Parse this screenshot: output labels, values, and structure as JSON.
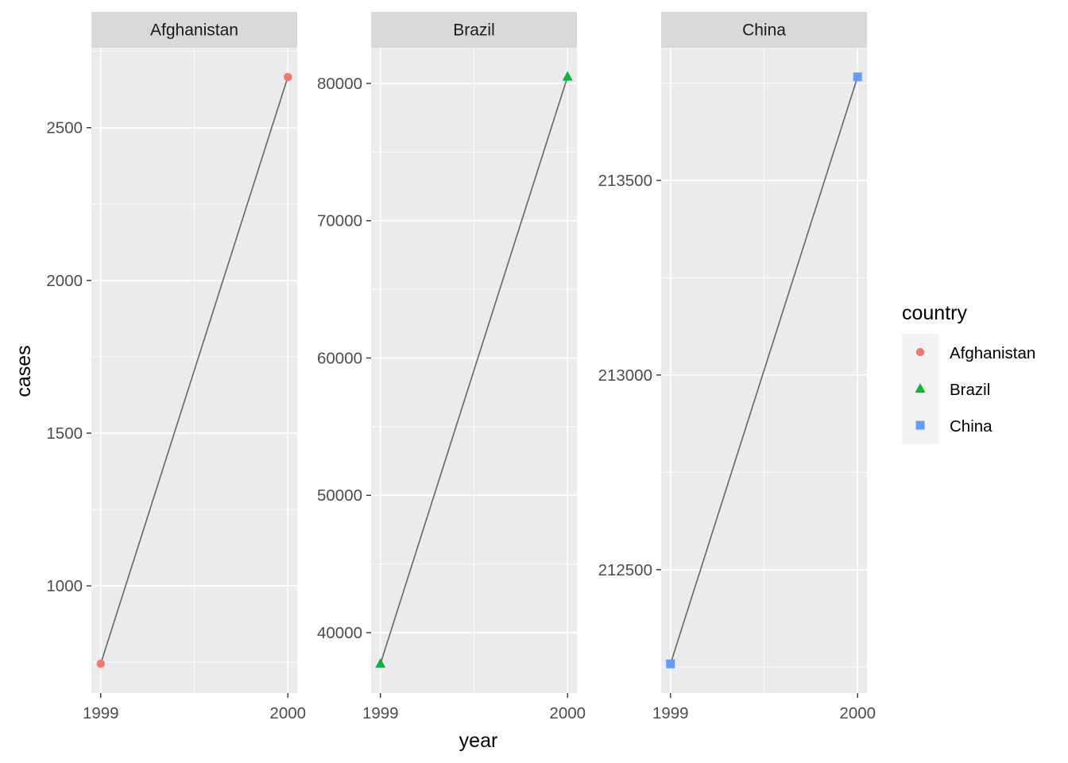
{
  "chart_data": {
    "type": "line",
    "facet_by": "country",
    "xlabel": "year",
    "ylabel": "cases",
    "x_ticks": [
      1999,
      2000
    ],
    "grid": true,
    "legend": {
      "title": "country",
      "placement": "right",
      "entries": [
        {
          "label": "Afghanistan",
          "color": "#F8766D",
          "shape": "circle"
        },
        {
          "label": "Brazil",
          "color": "#00BA38",
          "shape": "triangle"
        },
        {
          "label": "China",
          "color": "#619CFF",
          "shape": "square"
        }
      ]
    },
    "line_color": "#666666",
    "panels": [
      {
        "strip": "Afghanistan",
        "color": "#F8766D",
        "shape": "circle",
        "x": [
          1999,
          2000
        ],
        "y": [
          745,
          2666
        ],
        "ylim": [
          649,
          2762
        ],
        "y_ticks": [
          1000,
          1500,
          2000,
          2500
        ],
        "y_tick_labels": [
          "1000",
          "1500",
          "2000",
          "2500"
        ]
      },
      {
        "strip": "Brazil",
        "color": "#00BA38",
        "shape": "triangle",
        "x": [
          1999,
          2000
        ],
        "y": [
          37737,
          80488
        ],
        "ylim": [
          35600,
          82600
        ],
        "y_ticks": [
          40000,
          50000,
          60000,
          70000,
          80000
        ],
        "y_tick_labels": [
          "40000",
          "50000",
          "60000",
          "70000",
          "80000"
        ]
      },
      {
        "strip": "China",
        "color": "#619CFF",
        "shape": "square",
        "x": [
          1999,
          2000
        ],
        "y": [
          212258,
          213766
        ],
        "ylim": [
          212183,
          213841
        ],
        "y_ticks": [
          212500,
          213000,
          213500
        ],
        "y_tick_labels": [
          "212500",
          "213000",
          "213500"
        ]
      }
    ]
  }
}
